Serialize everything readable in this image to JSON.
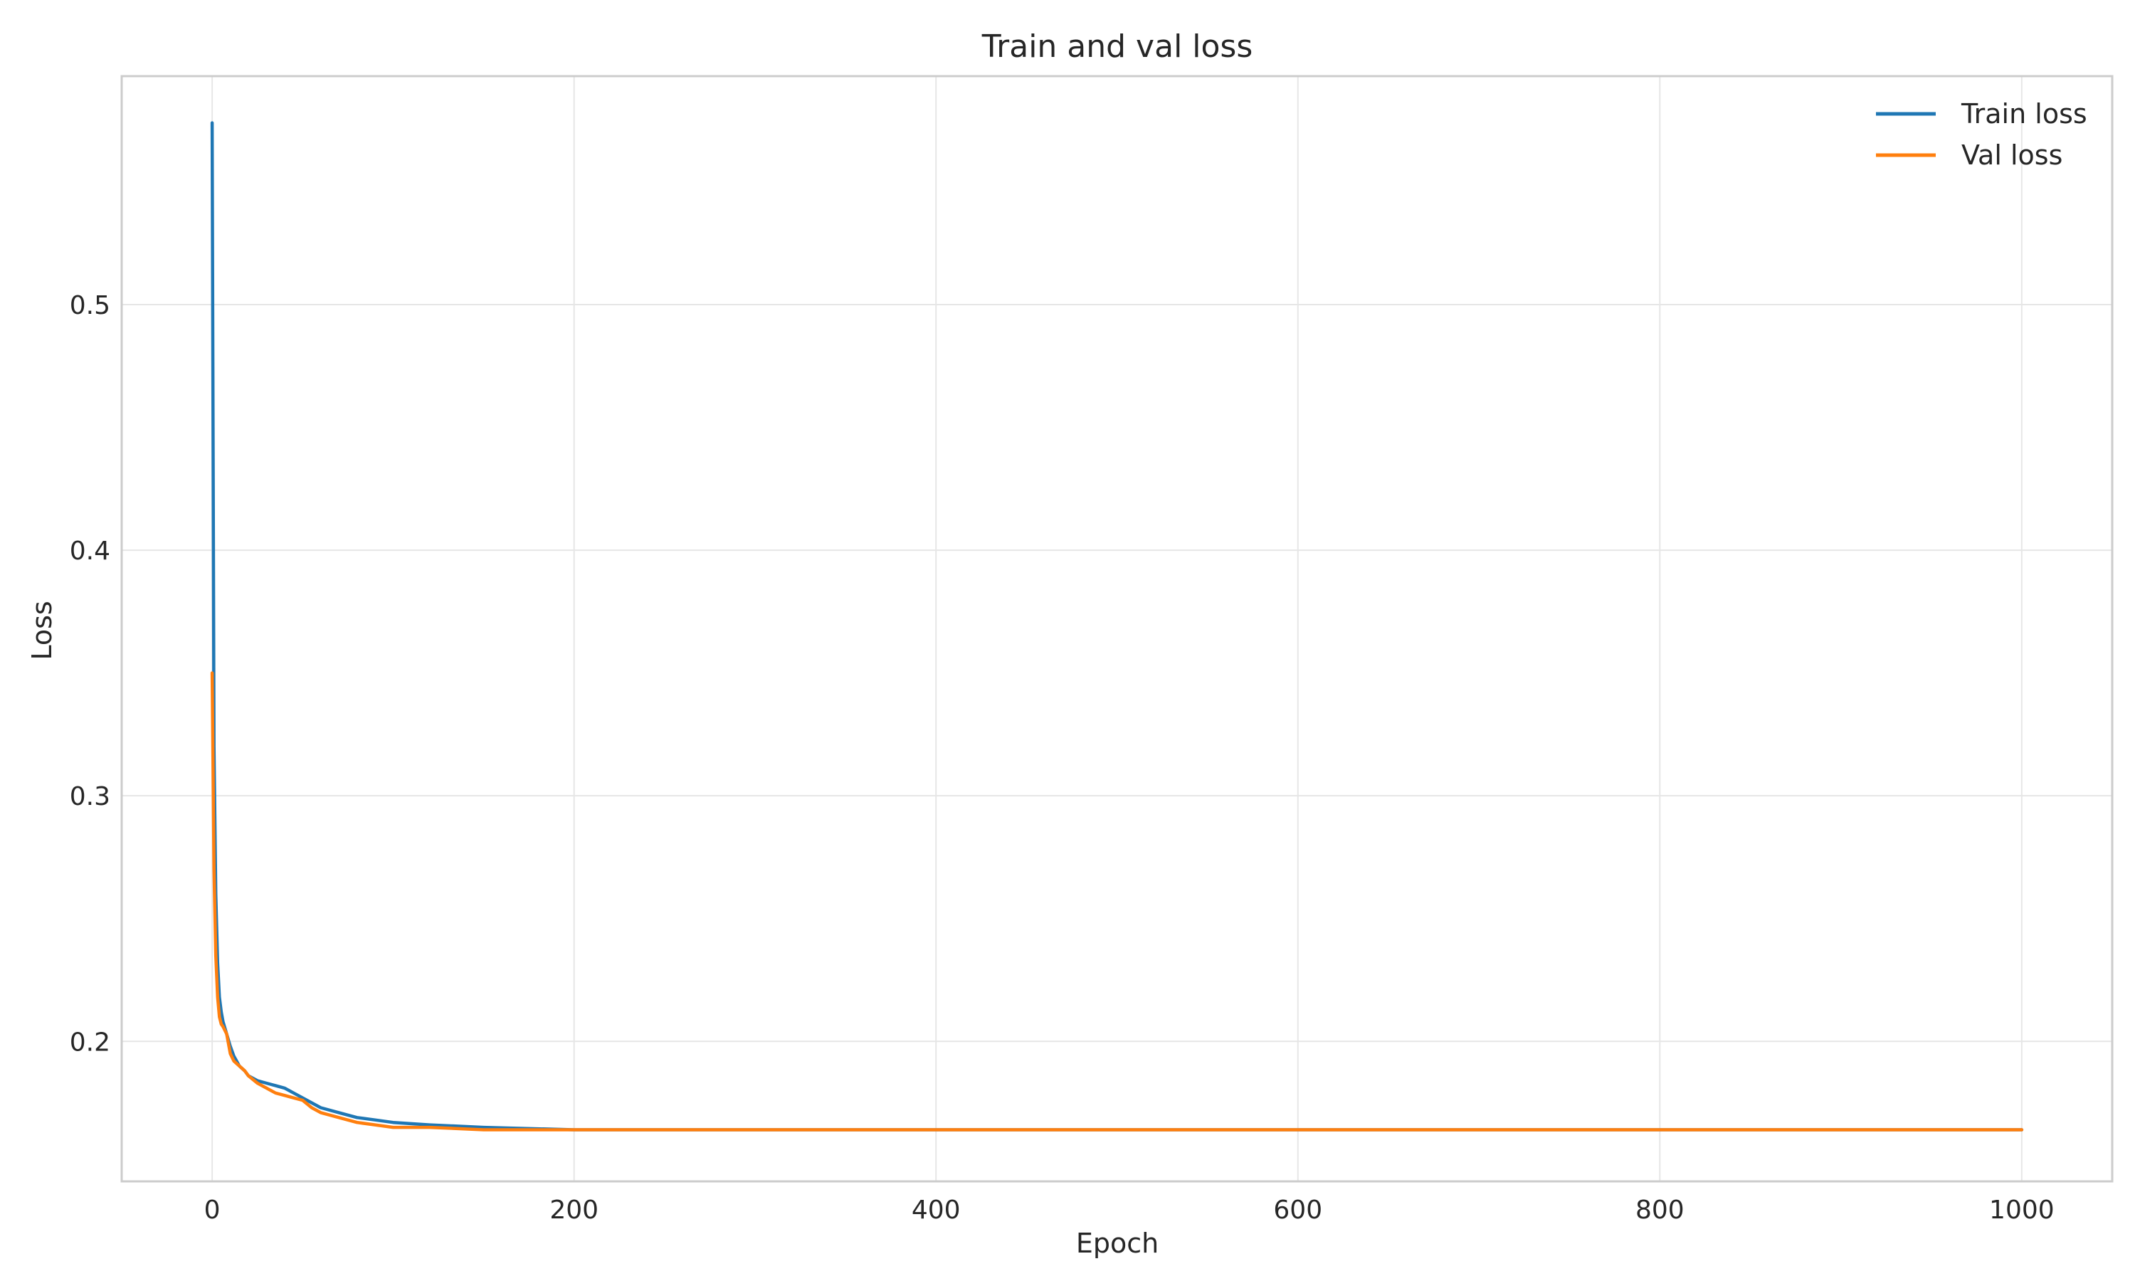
{
  "chart_data": {
    "type": "line",
    "title": "Train and val loss",
    "xlabel": "Epoch",
    "ylabel": "Loss",
    "xlim": [
      -50,
      1050
    ],
    "ylim": [
      0.143,
      0.593
    ],
    "xticks": [
      0,
      200,
      400,
      600,
      800,
      1000
    ],
    "yticks": [
      0.2,
      0.3,
      0.4,
      0.5
    ],
    "xtick_labels": [
      "0",
      "200",
      "400",
      "600",
      "800",
      "1000"
    ],
    "ytick_labels": [
      "0.2",
      "0.3",
      "0.4",
      "0.5"
    ],
    "grid": true,
    "legend_position": "top-right",
    "series": [
      {
        "name": "Train loss",
        "color": "#1f77b4",
        "x": [
          0,
          1,
          2,
          3,
          4,
          5,
          6,
          8,
          10,
          12,
          15,
          18,
          20,
          25,
          30,
          35,
          40,
          45,
          50,
          55,
          60,
          70,
          80,
          90,
          100,
          120,
          150,
          200,
          250,
          300,
          350,
          400,
          450,
          500,
          550,
          600,
          650,
          700,
          750,
          800,
          850,
          900,
          950,
          1000
        ],
        "y": [
          0.574,
          0.32,
          0.26,
          0.232,
          0.218,
          0.212,
          0.208,
          0.203,
          0.198,
          0.194,
          0.19,
          0.188,
          0.186,
          0.184,
          0.183,
          0.182,
          0.181,
          0.179,
          0.177,
          0.175,
          0.173,
          0.171,
          0.169,
          0.168,
          0.167,
          0.166,
          0.165,
          0.164,
          0.164,
          0.164,
          0.164,
          0.164,
          0.164,
          0.164,
          0.164,
          0.164,
          0.164,
          0.164,
          0.164,
          0.164,
          0.164,
          0.164,
          0.164,
          0.164
        ]
      },
      {
        "name": "Val loss",
        "color": "#ff7f0e",
        "x": [
          0,
          1,
          2,
          3,
          4,
          5,
          6,
          8,
          10,
          12,
          15,
          18,
          20,
          25,
          30,
          35,
          40,
          45,
          50,
          55,
          60,
          70,
          80,
          90,
          100,
          120,
          150,
          200,
          250,
          300,
          350,
          400,
          450,
          500,
          550,
          600,
          650,
          700,
          750,
          800,
          850,
          900,
          950,
          1000
        ],
        "y": [
          0.35,
          0.27,
          0.235,
          0.218,
          0.21,
          0.207,
          0.206,
          0.203,
          0.195,
          0.192,
          0.19,
          0.188,
          0.186,
          0.183,
          0.181,
          0.179,
          0.178,
          0.177,
          0.176,
          0.173,
          0.171,
          0.169,
          0.167,
          0.166,
          0.165,
          0.165,
          0.164,
          0.164,
          0.164,
          0.164,
          0.164,
          0.164,
          0.164,
          0.164,
          0.164,
          0.164,
          0.164,
          0.164,
          0.164,
          0.164,
          0.164,
          0.164,
          0.164,
          0.164
        ]
      }
    ]
  }
}
